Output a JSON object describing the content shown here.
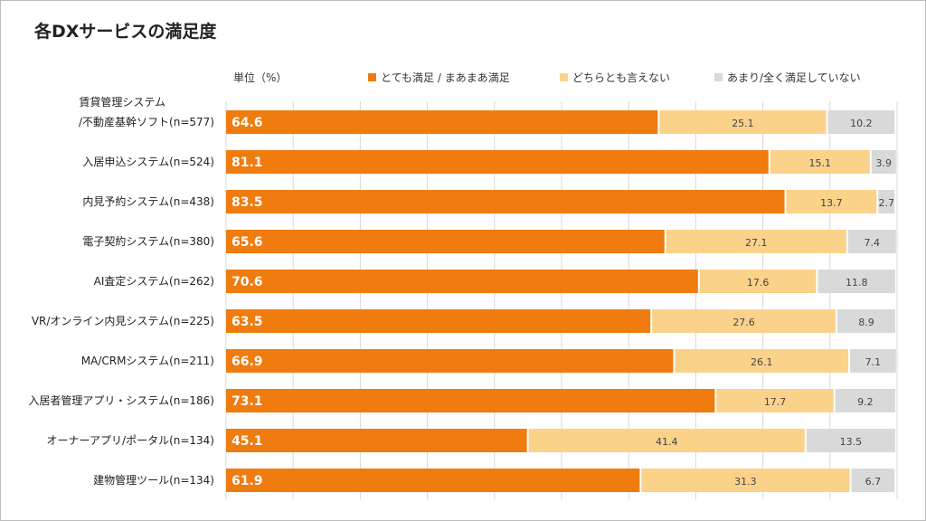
{
  "title": "各DXサービスの満足度",
  "unit_label": "単位（%）",
  "legend": [
    {
      "label": "とても満足 / まあまあ満足",
      "color": "#f07b0f"
    },
    {
      "label": "どちらとも言えない",
      "color": "#fad28a"
    },
    {
      "label": "あまり/全く満足していない",
      "color": "#d9d9d9"
    }
  ],
  "chart_data": {
    "type": "bar",
    "orientation": "horizontal",
    "stacked": true,
    "xlim": [
      0,
      100
    ],
    "grid": true,
    "legend_position": "top",
    "categories": [
      [
        "賃貸管理システム",
        "/不動産基幹ソフト(n=577)"
      ],
      [
        "入居申込システム(n=524)"
      ],
      [
        "内見予約システム(n=438)"
      ],
      [
        "電子契約システム(n=380)"
      ],
      [
        "AI査定システム(n=262)"
      ],
      [
        "VR/オンライン内見システム(n=225)"
      ],
      [
        "MA/CRMシステム(n=211)"
      ],
      [
        "入居者管理アプリ・システム(n=186)"
      ],
      [
        "オーナーアプリ/ポータル(n=134)"
      ],
      [
        "建物管理ツール(n=134)"
      ]
    ],
    "series": [
      {
        "name": "とても満足 / まあまあ満足",
        "color": "#f07b0f",
        "label_color": "#ffffff",
        "values": [
          64.6,
          81.1,
          83.5,
          65.6,
          70.6,
          63.5,
          66.9,
          73.1,
          45.1,
          61.9
        ]
      },
      {
        "name": "どちらとも言えない",
        "color": "#fad28a",
        "label_color": "#444444",
        "values": [
          25.1,
          15.1,
          13.7,
          27.1,
          17.6,
          27.6,
          26.1,
          17.7,
          41.4,
          31.3
        ]
      },
      {
        "name": "あまり/全く満足していない",
        "color": "#d9d9d9",
        "label_color": "#444444",
        "values": [
          10.2,
          3.9,
          2.7,
          7.4,
          11.8,
          8.9,
          7.1,
          9.2,
          13.5,
          6.7
        ]
      }
    ]
  }
}
